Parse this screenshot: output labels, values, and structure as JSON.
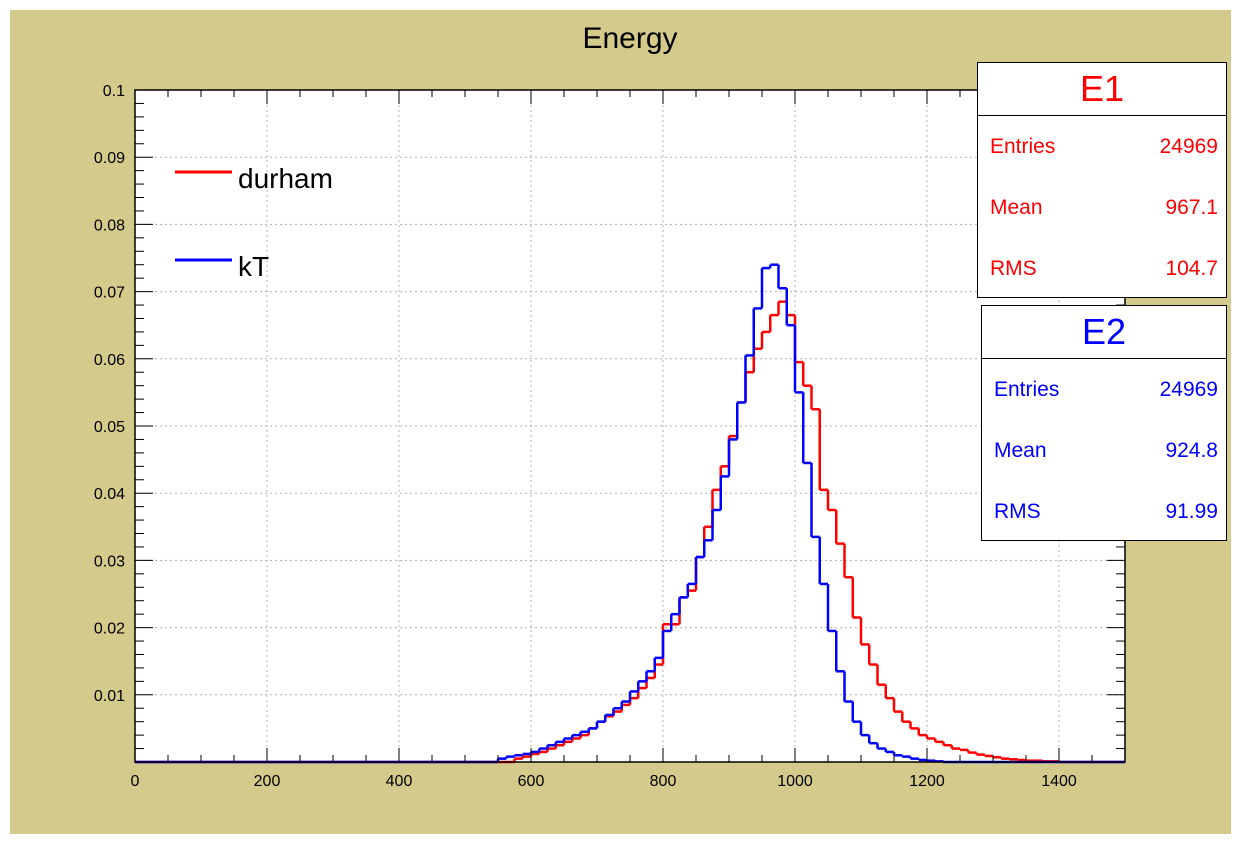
{
  "chart_data": {
    "type": "histogram",
    "title": "Energy",
    "xlim": [
      0,
      1500
    ],
    "ylim": [
      0,
      0.1
    ],
    "x_ticks": [
      "0",
      "200",
      "400",
      "600",
      "800",
      "1000",
      "1200",
      "1400"
    ],
    "x_tick_values": [
      0,
      200,
      400,
      600,
      800,
      1000,
      1200,
      1400
    ],
    "y_ticks": [
      "0.01",
      "0.02",
      "0.03",
      "0.04",
      "0.05",
      "0.06",
      "0.07",
      "0.08",
      "0.09",
      "0.1"
    ],
    "y_tick_values": [
      0.01,
      0.02,
      0.03,
      0.04,
      0.05,
      0.06,
      0.07,
      0.08,
      0.09,
      0.1
    ],
    "grid": true,
    "legend_position": "top-left",
    "bin_width": 12.5,
    "series": [
      {
        "name": "durham",
        "color": "#ff0000",
        "bins": [
          [
            575,
            0.0005
          ],
          [
            587.5,
            0.0008
          ],
          [
            600,
            0.0012
          ],
          [
            612.5,
            0.0015
          ],
          [
            625,
            0.002
          ],
          [
            637.5,
            0.0025
          ],
          [
            650,
            0.003
          ],
          [
            662.5,
            0.0035
          ],
          [
            675,
            0.004
          ],
          [
            687.5,
            0.005
          ],
          [
            700,
            0.006
          ],
          [
            712.5,
            0.0068
          ],
          [
            725,
            0.0075
          ],
          [
            737.5,
            0.0085
          ],
          [
            750,
            0.0095
          ],
          [
            762.5,
            0.011
          ],
          [
            775,
            0.0125
          ],
          [
            787.5,
            0.0145
          ],
          [
            800,
            0.0205
          ],
          [
            812.5,
            0.0205
          ],
          [
            825,
            0.0245
          ],
          [
            837.5,
            0.0255
          ],
          [
            850,
            0.0305
          ],
          [
            862.5,
            0.035
          ],
          [
            875,
            0.0405
          ],
          [
            887.5,
            0.044
          ],
          [
            900,
            0.0485
          ],
          [
            912.5,
            0.0535
          ],
          [
            925,
            0.058
          ],
          [
            937.5,
            0.0615
          ],
          [
            950,
            0.064
          ],
          [
            962.5,
            0.0665
          ],
          [
            975,
            0.0685
          ],
          [
            987.5,
            0.0665
          ],
          [
            1000,
            0.0595
          ],
          [
            1012.5,
            0.056
          ],
          [
            1025,
            0.0525
          ],
          [
            1037.5,
            0.0405
          ],
          [
            1050,
            0.0375
          ],
          [
            1062.5,
            0.0325
          ],
          [
            1075,
            0.0275
          ],
          [
            1087.5,
            0.0215
          ],
          [
            1100,
            0.0175
          ],
          [
            1112.5,
            0.0145
          ],
          [
            1125,
            0.0115
          ],
          [
            1137.5,
            0.0095
          ],
          [
            1150,
            0.0075
          ],
          [
            1162.5,
            0.006
          ],
          [
            1175,
            0.005
          ],
          [
            1187.5,
            0.004
          ],
          [
            1200,
            0.0035
          ],
          [
            1212.5,
            0.003
          ],
          [
            1225,
            0.0025
          ],
          [
            1237.5,
            0.002
          ],
          [
            1250,
            0.0018
          ],
          [
            1262.5,
            0.0014
          ],
          [
            1275,
            0.0011
          ],
          [
            1287.5,
            0.0009
          ],
          [
            1300,
            0.0007
          ],
          [
            1312.5,
            0.0005
          ],
          [
            1325,
            0.0004
          ],
          [
            1337.5,
            0.0003
          ],
          [
            1350,
            0.0002
          ],
          [
            1362.5,
            0.0002
          ],
          [
            1375,
            0.0001
          ],
          [
            1387.5,
            0.0001
          ]
        ]
      },
      {
        "name": "kT",
        "color": "#0000ff",
        "bins": [
          [
            550,
            0.0005
          ],
          [
            562.5,
            0.0008
          ],
          [
            575,
            0.001
          ],
          [
            587.5,
            0.0012
          ],
          [
            600,
            0.0015
          ],
          [
            612.5,
            0.002
          ],
          [
            625,
            0.0025
          ],
          [
            637.5,
            0.003
          ],
          [
            650,
            0.0035
          ],
          [
            662.5,
            0.004
          ],
          [
            675,
            0.0045
          ],
          [
            687.5,
            0.005
          ],
          [
            700,
            0.006
          ],
          [
            712.5,
            0.007
          ],
          [
            725,
            0.008
          ],
          [
            737.5,
            0.009
          ],
          [
            750,
            0.0105
          ],
          [
            762.5,
            0.012
          ],
          [
            775,
            0.0135
          ],
          [
            787.5,
            0.0155
          ],
          [
            800,
            0.0195
          ],
          [
            812.5,
            0.022
          ],
          [
            825,
            0.0245
          ],
          [
            837.5,
            0.0265
          ],
          [
            850,
            0.0305
          ],
          [
            862.5,
            0.033
          ],
          [
            875,
            0.0375
          ],
          [
            887.5,
            0.0425
          ],
          [
            900,
            0.048
          ],
          [
            912.5,
            0.0535
          ],
          [
            925,
            0.0605
          ],
          [
            937.5,
            0.0675
          ],
          [
            950,
            0.0735
          ],
          [
            962.5,
            0.074
          ],
          [
            975,
            0.0705
          ],
          [
            987.5,
            0.065
          ],
          [
            1000,
            0.055
          ],
          [
            1012.5,
            0.0445
          ],
          [
            1025,
            0.0335
          ],
          [
            1037.5,
            0.0265
          ],
          [
            1050,
            0.0195
          ],
          [
            1062.5,
            0.0135
          ],
          [
            1075,
            0.009
          ],
          [
            1087.5,
            0.006
          ],
          [
            1100,
            0.004
          ],
          [
            1112.5,
            0.0028
          ],
          [
            1125,
            0.002
          ],
          [
            1137.5,
            0.0015
          ],
          [
            1150,
            0.001
          ],
          [
            1162.5,
            0.0008
          ],
          [
            1175,
            0.0005
          ],
          [
            1187.5,
            0.0003
          ],
          [
            1200,
            0.0002
          ],
          [
            1212.5,
            0.0001
          ]
        ]
      }
    ],
    "stats_boxes": [
      {
        "title": "E1",
        "color": "#ff0000",
        "rows": [
          {
            "label": "Entries",
            "value": "24969"
          },
          {
            "label": "Mean",
            "value": "967.1"
          },
          {
            "label": "RMS",
            "value": "104.7"
          }
        ]
      },
      {
        "title": "E2",
        "color": "#0000ff",
        "rows": [
          {
            "label": "Entries",
            "value": "24969"
          },
          {
            "label": "Mean",
            "value": "924.8"
          },
          {
            "label": "RMS",
            "value": "91.99"
          }
        ]
      }
    ]
  },
  "colors": {
    "frame_background": "#d3ca8b",
    "plot_background": "#ffffff",
    "grid": "#b0b0b0"
  }
}
